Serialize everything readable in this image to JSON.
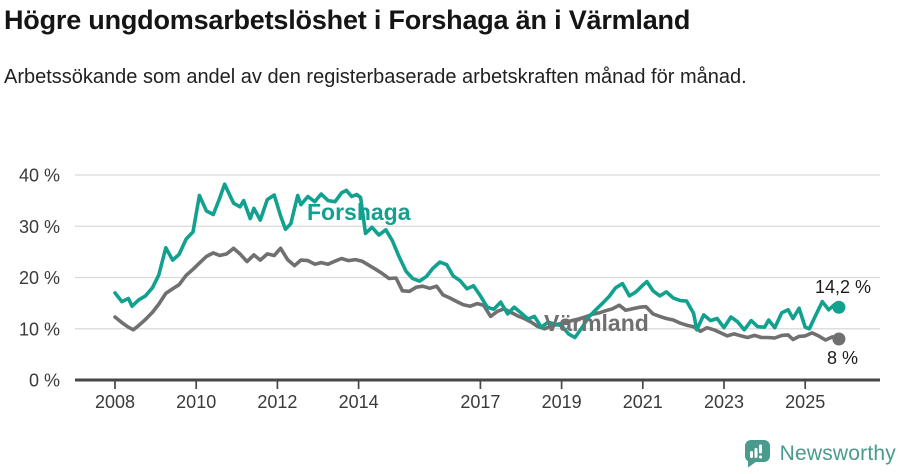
{
  "header": {
    "title": "Högre ungdomsarbetslöshet i Forshaga än i Värmland",
    "subtitle": "Arbetssökande som andel av den registerbaserade arbetskraften månad för månad."
  },
  "chart_data": {
    "type": "line",
    "title": "Högre ungdomsarbetslöshet i Forshaga än i Värmland",
    "subtitle": "Arbetssökande som andel av den registerbaserade arbetskraften månad för månad.",
    "ylim": [
      0,
      40
    ],
    "xlim": [
      2008,
      2026
    ],
    "grid": "horizontal",
    "legend_position": "inline-labels",
    "y_ticks": [
      {
        "v": 0,
        "label": "0 %"
      },
      {
        "v": 10,
        "label": "10 %"
      },
      {
        "v": 20,
        "label": "20 %"
      },
      {
        "v": 30,
        "label": "30 %"
      },
      {
        "v": 40,
        "label": "40 %"
      }
    ],
    "x_ticks": [
      {
        "v": 2008,
        "label": "2008"
      },
      {
        "v": 2010,
        "label": "2010"
      },
      {
        "v": 2012,
        "label": "2012"
      },
      {
        "v": 2014,
        "label": "2014"
      },
      {
        "v": 2017,
        "label": "2017"
      },
      {
        "v": 2019,
        "label": "2019"
      },
      {
        "v": 2021,
        "label": "2021"
      },
      {
        "v": 2023,
        "label": "2023"
      },
      {
        "v": 2025,
        "label": "2025"
      }
    ],
    "series": [
      {
        "name": "Forshaga",
        "color": "#11a18e",
        "end_label": "14,2 %",
        "end_value": 14.2,
        "points": [
          [
            2008.0,
            17.0
          ],
          [
            2008.17,
            15.3
          ],
          [
            2008.33,
            15.9
          ],
          [
            2008.42,
            14.4
          ],
          [
            2008.58,
            15.6
          ],
          [
            2008.75,
            16.4
          ],
          [
            2008.92,
            18.0
          ],
          [
            2009.08,
            20.5
          ],
          [
            2009.25,
            25.8
          ],
          [
            2009.42,
            23.4
          ],
          [
            2009.58,
            24.5
          ],
          [
            2009.75,
            27.5
          ],
          [
            2009.92,
            28.9
          ],
          [
            2010.08,
            36.0
          ],
          [
            2010.25,
            33.0
          ],
          [
            2010.42,
            32.3
          ],
          [
            2010.58,
            35.5
          ],
          [
            2010.7,
            38.2
          ],
          [
            2010.83,
            36.0
          ],
          [
            2010.92,
            34.5
          ],
          [
            2011.08,
            33.8
          ],
          [
            2011.17,
            35.0
          ],
          [
            2011.33,
            31.5
          ],
          [
            2011.42,
            33.5
          ],
          [
            2011.58,
            31.2
          ],
          [
            2011.75,
            35.2
          ],
          [
            2011.92,
            36.1
          ],
          [
            2012.08,
            32.0
          ],
          [
            2012.2,
            29.4
          ],
          [
            2012.33,
            30.5
          ],
          [
            2012.5,
            36.0
          ],
          [
            2012.58,
            34.2
          ],
          [
            2012.75,
            35.8
          ],
          [
            2012.92,
            34.8
          ],
          [
            2013.08,
            36.3
          ],
          [
            2013.25,
            35.0
          ],
          [
            2013.42,
            34.8
          ],
          [
            2013.58,
            36.5
          ],
          [
            2013.7,
            37.0
          ],
          [
            2013.83,
            35.8
          ],
          [
            2013.95,
            36.2
          ],
          [
            2014.05,
            35.6
          ],
          [
            2014.17,
            28.6
          ],
          [
            2014.33,
            29.8
          ],
          [
            2014.5,
            28.3
          ],
          [
            2014.67,
            29.3
          ],
          [
            2014.83,
            27.2
          ],
          [
            2015.0,
            24.0
          ],
          [
            2015.17,
            21.2
          ],
          [
            2015.33,
            19.8
          ],
          [
            2015.5,
            19.3
          ],
          [
            2015.67,
            20.2
          ],
          [
            2015.83,
            21.8
          ],
          [
            2016.0,
            23.0
          ],
          [
            2016.17,
            22.5
          ],
          [
            2016.33,
            20.3
          ],
          [
            2016.5,
            19.4
          ],
          [
            2016.67,
            17.8
          ],
          [
            2016.83,
            18.4
          ],
          [
            2017.0,
            16.4
          ],
          [
            2017.17,
            14.2
          ],
          [
            2017.33,
            13.8
          ],
          [
            2017.5,
            15.2
          ],
          [
            2017.67,
            12.9
          ],
          [
            2017.83,
            14.2
          ],
          [
            2018.0,
            13.1
          ],
          [
            2018.17,
            11.9
          ],
          [
            2018.33,
            12.4
          ],
          [
            2018.5,
            10.3
          ],
          [
            2018.67,
            11.3
          ],
          [
            2018.83,
            10.9
          ],
          [
            2019.0,
            10.6
          ],
          [
            2019.17,
            9.0
          ],
          [
            2019.33,
            8.3
          ],
          [
            2019.5,
            10.2
          ],
          [
            2019.67,
            12.3
          ],
          [
            2019.83,
            13.6
          ],
          [
            2020.0,
            14.9
          ],
          [
            2020.17,
            16.3
          ],
          [
            2020.33,
            18.0
          ],
          [
            2020.5,
            18.8
          ],
          [
            2020.67,
            16.4
          ],
          [
            2020.83,
            17.2
          ],
          [
            2021.0,
            18.5
          ],
          [
            2021.1,
            19.2
          ],
          [
            2021.25,
            17.4
          ],
          [
            2021.42,
            16.4
          ],
          [
            2021.58,
            17.2
          ],
          [
            2021.75,
            16.0
          ],
          [
            2021.92,
            15.5
          ],
          [
            2022.08,
            15.4
          ],
          [
            2022.25,
            13.0
          ],
          [
            2022.33,
            9.8
          ],
          [
            2022.5,
            12.7
          ],
          [
            2022.67,
            11.6
          ],
          [
            2022.83,
            12.0
          ],
          [
            2023.0,
            10.2
          ],
          [
            2023.17,
            12.3
          ],
          [
            2023.33,
            11.4
          ],
          [
            2023.5,
            9.8
          ],
          [
            2023.67,
            11.6
          ],
          [
            2023.83,
            10.4
          ],
          [
            2024.0,
            10.3
          ],
          [
            2024.1,
            11.7
          ],
          [
            2024.25,
            10.2
          ],
          [
            2024.42,
            13.1
          ],
          [
            2024.58,
            13.7
          ],
          [
            2024.7,
            12.0
          ],
          [
            2024.85,
            14.0
          ],
          [
            2025.0,
            10.3
          ],
          [
            2025.1,
            10.0
          ],
          [
            2025.25,
            12.5
          ],
          [
            2025.42,
            15.3
          ],
          [
            2025.58,
            13.7
          ],
          [
            2025.72,
            14.7
          ],
          [
            2025.83,
            14.2
          ]
        ]
      },
      {
        "name": "Värmland",
        "color": "#707070",
        "end_label": "8 %",
        "end_value": 8,
        "points": [
          [
            2008.0,
            12.3
          ],
          [
            2008.17,
            11.2
          ],
          [
            2008.33,
            10.3
          ],
          [
            2008.45,
            9.8
          ],
          [
            2008.58,
            10.6
          ],
          [
            2008.75,
            11.8
          ],
          [
            2008.92,
            13.2
          ],
          [
            2009.08,
            14.8
          ],
          [
            2009.25,
            16.9
          ],
          [
            2009.42,
            17.8
          ],
          [
            2009.58,
            18.6
          ],
          [
            2009.75,
            20.4
          ],
          [
            2009.92,
            21.6
          ],
          [
            2010.08,
            22.8
          ],
          [
            2010.25,
            24.1
          ],
          [
            2010.42,
            24.8
          ],
          [
            2010.58,
            24.3
          ],
          [
            2010.75,
            24.6
          ],
          [
            2010.92,
            25.7
          ],
          [
            2011.08,
            24.6
          ],
          [
            2011.25,
            23.1
          ],
          [
            2011.42,
            24.4
          ],
          [
            2011.58,
            23.4
          ],
          [
            2011.75,
            24.6
          ],
          [
            2011.92,
            24.3
          ],
          [
            2012.08,
            25.7
          ],
          [
            2012.25,
            23.5
          ],
          [
            2012.42,
            22.3
          ],
          [
            2012.58,
            23.4
          ],
          [
            2012.75,
            23.3
          ],
          [
            2012.92,
            22.6
          ],
          [
            2013.08,
            22.9
          ],
          [
            2013.25,
            22.6
          ],
          [
            2013.42,
            23.2
          ],
          [
            2013.58,
            23.7
          ],
          [
            2013.75,
            23.3
          ],
          [
            2013.92,
            23.5
          ],
          [
            2014.08,
            23.2
          ],
          [
            2014.25,
            22.4
          ],
          [
            2014.42,
            21.6
          ],
          [
            2014.58,
            20.8
          ],
          [
            2014.75,
            19.8
          ],
          [
            2014.92,
            19.9
          ],
          [
            2015.08,
            17.4
          ],
          [
            2015.25,
            17.3
          ],
          [
            2015.42,
            18.1
          ],
          [
            2015.58,
            18.3
          ],
          [
            2015.75,
            17.9
          ],
          [
            2015.92,
            18.3
          ],
          [
            2016.08,
            16.6
          ],
          [
            2016.25,
            16.0
          ],
          [
            2016.42,
            15.3
          ],
          [
            2016.58,
            14.7
          ],
          [
            2016.75,
            14.4
          ],
          [
            2016.92,
            14.9
          ],
          [
            2017.08,
            14.6
          ],
          [
            2017.25,
            12.4
          ],
          [
            2017.42,
            13.4
          ],
          [
            2017.58,
            13.9
          ],
          [
            2017.75,
            13.2
          ],
          [
            2017.92,
            12.5
          ],
          [
            2018.08,
            12.0
          ],
          [
            2018.25,
            11.3
          ],
          [
            2018.42,
            10.4
          ],
          [
            2018.58,
            10.0
          ],
          [
            2018.75,
            10.5
          ],
          [
            2018.92,
            10.9
          ],
          [
            2019.08,
            11.2
          ],
          [
            2019.25,
            11.6
          ],
          [
            2019.42,
            11.9
          ],
          [
            2019.58,
            12.3
          ],
          [
            2019.75,
            12.8
          ],
          [
            2019.92,
            13.1
          ],
          [
            2020.08,
            13.5
          ],
          [
            2020.25,
            13.9
          ],
          [
            2020.42,
            14.6
          ],
          [
            2020.58,
            13.6
          ],
          [
            2020.75,
            13.9
          ],
          [
            2020.92,
            14.2
          ],
          [
            2021.08,
            14.3
          ],
          [
            2021.25,
            12.9
          ],
          [
            2021.42,
            12.4
          ],
          [
            2021.58,
            12.0
          ],
          [
            2021.75,
            11.7
          ],
          [
            2021.92,
            11.1
          ],
          [
            2022.08,
            10.7
          ],
          [
            2022.25,
            10.4
          ],
          [
            2022.42,
            9.5
          ],
          [
            2022.58,
            10.2
          ],
          [
            2022.75,
            9.8
          ],
          [
            2022.92,
            9.2
          ],
          [
            2023.08,
            8.6
          ],
          [
            2023.25,
            9.0
          ],
          [
            2023.42,
            8.6
          ],
          [
            2023.58,
            8.3
          ],
          [
            2023.75,
            8.7
          ],
          [
            2023.92,
            8.3
          ],
          [
            2024.08,
            8.3
          ],
          [
            2024.25,
            8.2
          ],
          [
            2024.42,
            8.7
          ],
          [
            2024.58,
            8.8
          ],
          [
            2024.7,
            7.9
          ],
          [
            2024.85,
            8.5
          ],
          [
            2025.0,
            8.6
          ],
          [
            2025.17,
            9.2
          ],
          [
            2025.33,
            8.6
          ],
          [
            2025.5,
            7.8
          ],
          [
            2025.67,
            8.4
          ],
          [
            2025.83,
            8.0
          ]
        ]
      }
    ]
  },
  "footer": {
    "brand": "Newsworthy",
    "brand_color": "#4a9a8d"
  }
}
